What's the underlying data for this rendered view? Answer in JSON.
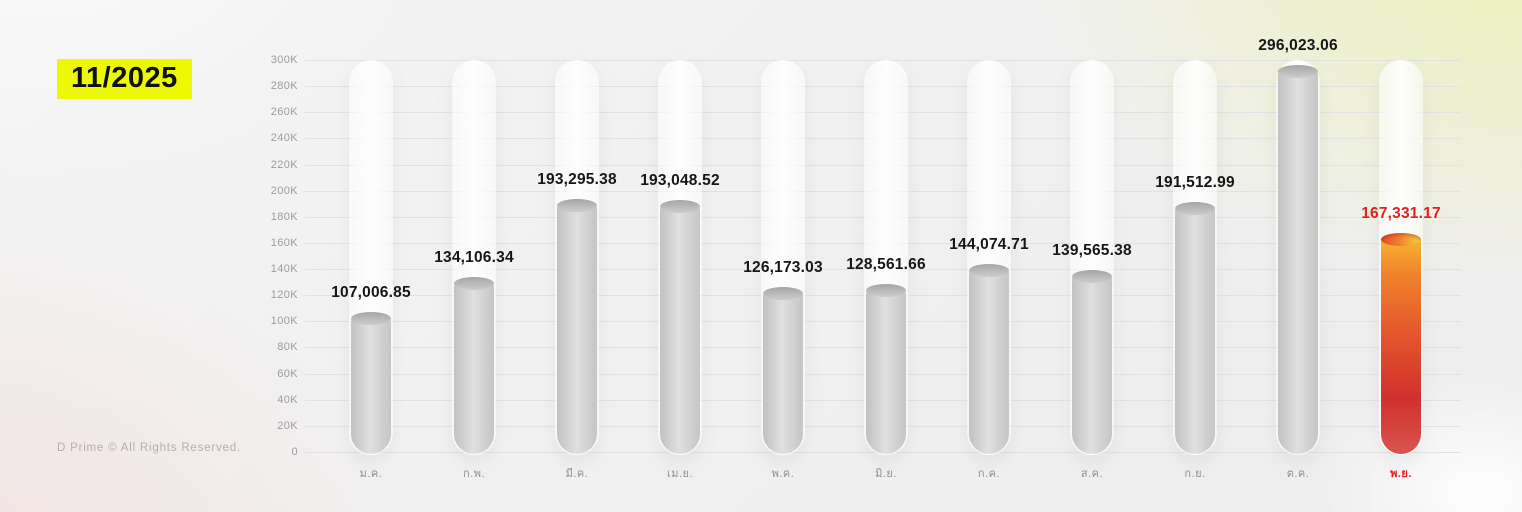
{
  "page": {
    "period_badge": "11/2025",
    "copyright": "D Prime © All Rights Reserved."
  },
  "colors": {
    "badge_bg": "#ecf902",
    "badge_text": "#101010",
    "grid_line": "#e2e2e2",
    "axis_text": "#9c9c9c",
    "value_text": "#161616",
    "highlight_text": "#e3201b",
    "bar_gray_edge": "#c1c1c1",
    "bar_gray_center": "#e0e0e0",
    "bar_disk_gray": "#a5a5a5",
    "bar_hot_top": "#f7bd33",
    "bar_hot_mid": "#e4572c",
    "bar_hot_bottom": "#d1312d",
    "tube_white": "rgba(255,255,255,0.93)",
    "background_tint_topright": "#edf2b2",
    "background_tint_bottomleft": "#f3dedd"
  },
  "chart_data": {
    "type": "bar",
    "title": "",
    "xlabel": "",
    "ylabel": "",
    "grid": true,
    "legend_position": "none",
    "categories": [
      "ม.ค.",
      "ก.พ.",
      "มี.ค.",
      "เม.ย.",
      "พ.ค.",
      "มิ.ย.",
      "ก.ค.",
      "ส.ค.",
      "ก.ย.",
      "ต.ค.",
      "พ.ย."
    ],
    "values": [
      107006.85,
      134106.34,
      193295.38,
      193048.52,
      126173.03,
      128561.66,
      144074.71,
      139565.38,
      191512.99,
      296023.06,
      167331.17
    ],
    "value_labels": [
      "107,006.85",
      "134,106.34",
      "193,295.38",
      "193,048.52",
      "126,173.03",
      "128,561.66",
      "144,074.71",
      "139,565.38",
      "191,512.99",
      "296,023.06",
      "167,331.17"
    ],
    "highlighted_index": 10,
    "bar_style": "thermometer-cylinder",
    "default_bar_theme": "gray",
    "highlight_bar_theme": "orange-red-gradient",
    "ylim": [
      0,
      300000
    ],
    "ytick_step": 20000,
    "ytick_labels": [
      "0",
      "20K",
      "40K",
      "60K",
      "80K",
      "100K",
      "120K",
      "140K",
      "160K",
      "180K",
      "200K",
      "220K",
      "240K",
      "260K",
      "280K",
      "300K"
    ]
  }
}
